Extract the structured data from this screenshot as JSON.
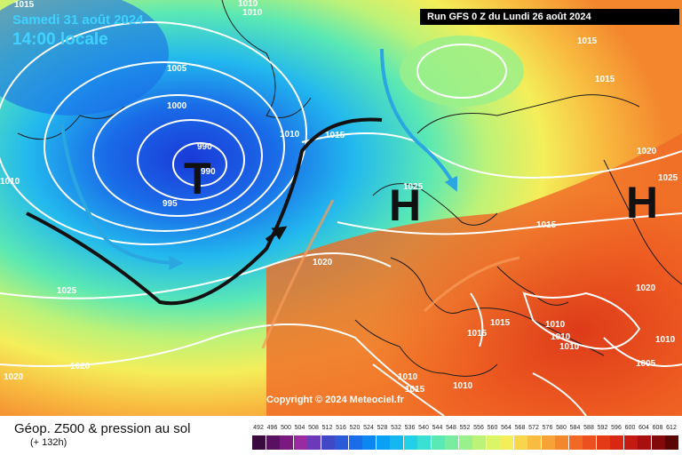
{
  "map": {
    "title": "Géop. Z500 & pression au sol",
    "subtitle": "(+ 132h)",
    "run": "Run GFS 0 Z du Lundi 26 août 2024",
    "valid_date": "Samedi 31 août 2024",
    "valid_time": "14:00 locale",
    "copyright": "Copyright © 2024 Meteociel.fr"
  },
  "systems": [
    {
      "label": "T",
      "kind": "low"
    },
    {
      "label": "H",
      "kind": "high"
    },
    {
      "label": "H",
      "kind": "high"
    }
  ],
  "isobar_labels": [
    "1015",
    "1010",
    "1010",
    "1005",
    "1000",
    "990",
    "990",
    "995",
    "1010",
    "1015",
    "1010",
    "1015",
    "1015",
    "1020",
    "1025",
    "1025",
    "1020",
    "1015",
    "1020",
    "1025",
    "1015",
    "1015",
    "1010",
    "1010",
    "1010",
    "1010",
    "1005",
    "1020",
    "1020",
    "1010",
    "1015",
    "1010"
  ],
  "legend": {
    "values": [
      "492",
      "496",
      "500",
      "504",
      "508",
      "512",
      "516",
      "520",
      "524",
      "528",
      "532",
      "536",
      "540",
      "544",
      "548",
      "552",
      "556",
      "560",
      "564",
      "568",
      "572",
      "576",
      "580",
      "584",
      "588",
      "592",
      "596",
      "600",
      "604",
      "608",
      "612"
    ],
    "colors": [
      "#3a0a3f",
      "#5a1060",
      "#7a1a80",
      "#9a2aa0",
      "#6a3ab8",
      "#4048c8",
      "#2a5ad8",
      "#1a6ce8",
      "#0c86f0",
      "#0aa0f4",
      "#14b8ee",
      "#22d0e8",
      "#3ae0d4",
      "#5ae8b4",
      "#7aeca0",
      "#9af08a",
      "#bcf278",
      "#dcf468",
      "#f4ee5a",
      "#f8d64c",
      "#f8bc40",
      "#f6a236",
      "#f4862e",
      "#f06a26",
      "#ec501e",
      "#e43a18",
      "#d82814",
      "#c41a12",
      "#a81010",
      "#820a0a",
      "#5a0606"
    ]
  },
  "colors": {
    "arrow": "#2aa6e0",
    "front": "#111111",
    "isobar": "#ffffff"
  }
}
